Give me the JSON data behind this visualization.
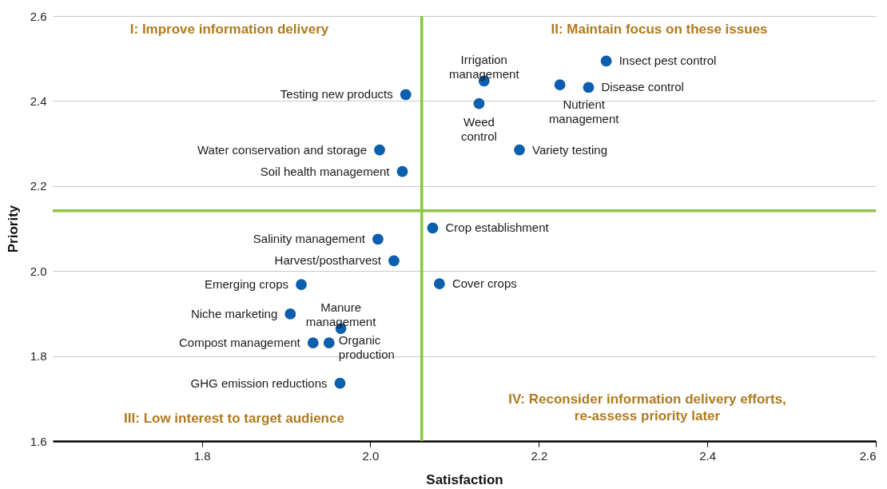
{
  "chart_data": {
    "type": "scatter",
    "xlabel": "Satisfaction",
    "ylabel": "Priority",
    "xlim": [
      1.623,
      2.6
    ],
    "xticks": [
      1.8,
      {
        "value": 2,
        "label": "2.0"
      },
      2.2,
      2.4,
      2.6
    ],
    "ylim": [
      1.6,
      2.6
    ],
    "yticks": [
      1.6,
      1.8,
      {
        "value": 2,
        "label": "2.0"
      },
      2.2,
      2.4,
      2.6
    ],
    "grid": "y",
    "marker": "circle",
    "series": [
      {
        "color": "#0b5fad",
        "x": [
          2.042,
          2.011,
          2.038,
          2.135,
          2.129,
          2.28,
          2.225,
          2.259,
          2.177,
          2.074,
          2.082,
          2.009,
          2.028,
          1.918,
          1.905,
          1.965,
          1.932,
          1.951,
          1.964
        ],
        "values": [
          2.415,
          2.285,
          2.234,
          2.447,
          2.394,
          2.494,
          2.438,
          2.432,
          2.285,
          2.101,
          1.97,
          2.075,
          2.024,
          1.968,
          1.899,
          1.865,
          1.831,
          1.831,
          1.736
        ]
      }
    ],
    "ref_lines": [
      {
        "axis": "x",
        "value": 2.061,
        "color": "#8dc63f"
      },
      {
        "axis": "y",
        "value": 2.142,
        "color": "#8dc63f"
      }
    ],
    "annotations": [
      {
        "text": "Testing new products",
        "x": 2.042,
        "y": 2.415
      },
      {
        "text": "Water conservation and storage",
        "x": 2.011,
        "y": 2.285
      },
      {
        "text": "Soil health management",
        "x": 2.038,
        "y": 2.234
      },
      {
        "text": "Irrigation management",
        "x": 2.135,
        "y": 2.447
      },
      {
        "text": "Weed control",
        "x": 2.129,
        "y": 2.394
      },
      {
        "text": "Insect pest control",
        "x": 2.28,
        "y": 2.494
      },
      {
        "text": "Nutrient management",
        "x": 2.225,
        "y": 2.438
      },
      {
        "text": "Disease control",
        "x": 2.259,
        "y": 2.432
      },
      {
        "text": "Variety testing",
        "x": 2.177,
        "y": 2.285
      },
      {
        "text": "Crop establishment",
        "x": 2.074,
        "y": 2.101
      },
      {
        "text": "Cover crops",
        "x": 2.082,
        "y": 1.97
      },
      {
        "text": "Salinity management",
        "x": 2.009,
        "y": 2.075
      },
      {
        "text": "Harvest/postharvest",
        "x": 2.028,
        "y": 2.024
      },
      {
        "text": "Emerging crops",
        "x": 1.918,
        "y": 1.968
      },
      {
        "text": "Niche marketing",
        "x": 1.905,
        "y": 1.899
      },
      {
        "text": "Manure management",
        "x": 1.965,
        "y": 1.865
      },
      {
        "text": "Compost management",
        "x": 1.932,
        "y": 1.831
      },
      {
        "text": "Organic production",
        "x": 1.951,
        "y": 1.831
      },
      {
        "text": "GHG emission reductions",
        "x": 1.964,
        "y": 1.736
      },
      "I: Improve information delivery",
      "II: Maintain focus on these issues",
      "III: Low interest to target audience",
      "IV: Reconsider information delivery efforts, re-assess priority later"
    ]
  }
}
